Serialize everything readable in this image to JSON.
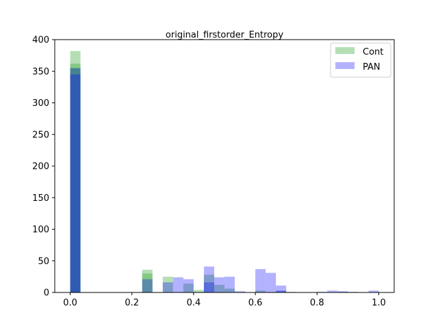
{
  "chart_data": {
    "type": "bar",
    "title": "original_firstorder_Entropy",
    "xlabel": "",
    "ylabel": "",
    "xlim": [
      -0.05,
      1.05
    ],
    "ylim": [
      0,
      400
    ],
    "xticks": [
      "0.0",
      "0.2",
      "0.4",
      "0.6",
      "0.8",
      "1.0"
    ],
    "yticks": [
      "0",
      "50",
      "100",
      "150",
      "200",
      "250",
      "300",
      "350",
      "400"
    ],
    "grid": false,
    "legend_position": "top-right",
    "series": [
      {
        "name": "Cont",
        "color": "#2ca02c",
        "opacity": 0.35,
        "bars": [
          {
            "x0": 0.0,
            "x1": 0.0333,
            "y": 382
          },
          {
            "x0": 0.0,
            "x1": 0.0333,
            "y": 362
          },
          {
            "x0": 0.0,
            "x1": 0.0333,
            "y": 355
          },
          {
            "x0": 0.2333,
            "x1": 0.2667,
            "y": 36
          },
          {
            "x0": 0.2333,
            "x1": 0.2667,
            "y": 30
          },
          {
            "x0": 0.3,
            "x1": 0.3333,
            "y": 25
          },
          {
            "x0": 0.3667,
            "x1": 0.4,
            "y": 14
          },
          {
            "x0": 0.4,
            "x1": 0.4333,
            "y": 4
          },
          {
            "x0": 0.4333,
            "x1": 0.4667,
            "y": 28
          },
          {
            "x0": 0.4667,
            "x1": 0.5,
            "y": 12
          },
          {
            "x0": 0.5,
            "x1": 0.5333,
            "y": 6
          },
          {
            "x0": 0.6,
            "x1": 0.6333,
            "y": 3
          },
          {
            "x0": 0.6667,
            "x1": 0.7,
            "y": 2
          },
          {
            "x0": 0.7,
            "x1": 0.7333,
            "y": 1
          },
          {
            "x0": 0.8667,
            "x1": 0.9,
            "y": 1
          }
        ]
      },
      {
        "name": "PAN",
        "color": "#0000ff",
        "opacity": 0.3,
        "bars": [
          {
            "x0": 0.0,
            "x1": 0.0333,
            "y": 355
          },
          {
            "x0": 0.0,
            "x1": 0.0333,
            "y": 345
          },
          {
            "x0": 0.2333,
            "x1": 0.2667,
            "y": 21
          },
          {
            "x0": 0.3,
            "x1": 0.3333,
            "y": 16
          },
          {
            "x0": 0.3333,
            "x1": 0.3667,
            "y": 24
          },
          {
            "x0": 0.3667,
            "x1": 0.4,
            "y": 21
          },
          {
            "x0": 0.4333,
            "x1": 0.4667,
            "y": 41
          },
          {
            "x0": 0.4333,
            "x1": 0.4667,
            "y": 16
          },
          {
            "x0": 0.4667,
            "x1": 0.5,
            "y": 24
          },
          {
            "x0": 0.5,
            "x1": 0.5333,
            "y": 25
          },
          {
            "x0": 0.5333,
            "x1": 0.5667,
            "y": 2
          },
          {
            "x0": 0.6,
            "x1": 0.6333,
            "y": 37
          },
          {
            "x0": 0.6333,
            "x1": 0.6667,
            "y": 31
          },
          {
            "x0": 0.6667,
            "x1": 0.7,
            "y": 11
          },
          {
            "x0": 0.6667,
            "x1": 0.7,
            "y": 3
          },
          {
            "x0": 0.8,
            "x1": 0.8333,
            "y": 1
          },
          {
            "x0": 0.8333,
            "x1": 0.8667,
            "y": 3
          },
          {
            "x0": 0.8667,
            "x1": 0.9,
            "y": 2
          },
          {
            "x0": 0.9,
            "x1": 0.9333,
            "y": 1
          },
          {
            "x0": 0.9667,
            "x1": 1.0,
            "y": 3
          }
        ]
      }
    ]
  }
}
